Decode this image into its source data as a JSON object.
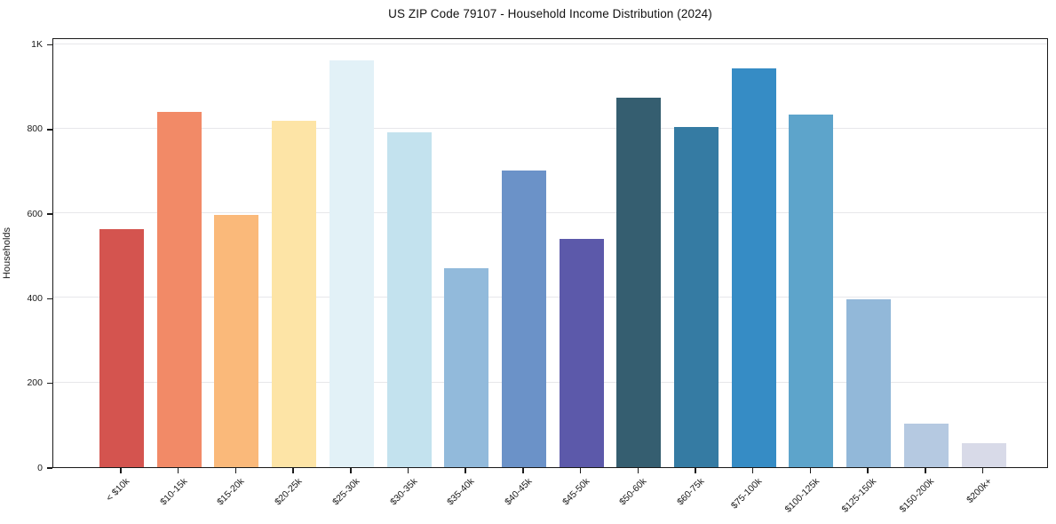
{
  "chart_data": {
    "type": "bar",
    "title": "US ZIP Code 79107 - Household Income Distribution (2024)",
    "xlabel": "",
    "ylabel": "Households",
    "categories": [
      "< $10k",
      "$10-15k",
      "$15-20k",
      "$20-25k",
      "$25-30k",
      "$30-35k",
      "$35-40k",
      "$40-45k",
      "$45-50k",
      "$50-60k",
      "$60-75k",
      "$75-100k",
      "$100-125k",
      "$125-150k",
      "$150-200k",
      "$200k+"
    ],
    "values": [
      563,
      840,
      596,
      818,
      962,
      792,
      471,
      702,
      540,
      873,
      804,
      943,
      833,
      397,
      102,
      56
    ],
    "bar_colors": [
      "#d4544f",
      "#f28a67",
      "#fab97a",
      "#fde4a6",
      "#e2f1f7",
      "#c3e2ee",
      "#92badb",
      "#6b92c8",
      "#5c59aa",
      "#355e70",
      "#357ba3",
      "#368cc5",
      "#5da4cb",
      "#92b8d9",
      "#b5c9e1",
      "#d8dae8"
    ],
    "yticks": [
      {
        "value": 0,
        "label": "0"
      },
      {
        "value": 200,
        "label": "200"
      },
      {
        "value": 400,
        "label": "400"
      },
      {
        "value": 600,
        "label": "600"
      },
      {
        "value": 800,
        "label": "800"
      },
      {
        "value": 1000,
        "label": "1K"
      }
    ],
    "ylim": [
      0,
      1016
    ],
    "grid": "horizontal",
    "legend_position": "none",
    "xtick_rotation_deg": 45,
    "colors": {
      "axis": "#1a1a1a",
      "grid": "#e7e7ea",
      "background": "#ffffff",
      "title_text": "#111111",
      "tick_text": "#1a1a1a"
    }
  }
}
